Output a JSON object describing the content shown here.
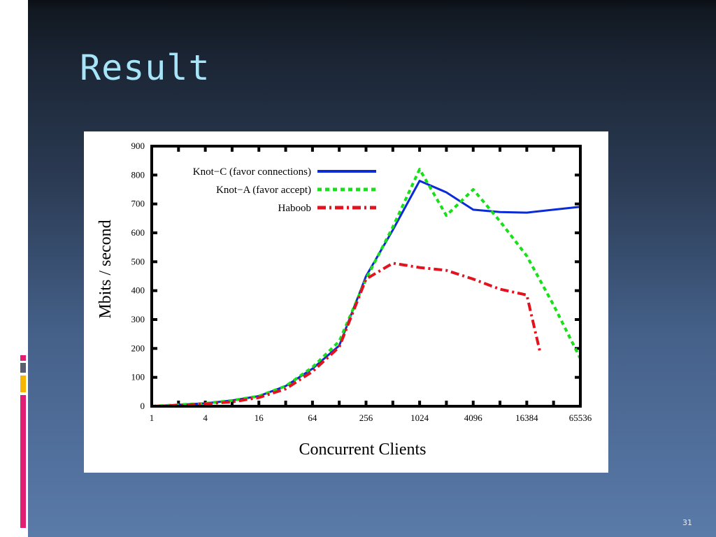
{
  "slide": {
    "title": "Result",
    "number": "31"
  },
  "colors": {
    "title": "#a7e4f7",
    "accent_pink": "#e11d74",
    "accent_gray": "#56606e",
    "accent_orange": "#f5b400",
    "series_knot_c": "#0a2bd6",
    "series_knot_a": "#18e018",
    "series_haboob": "#e3121f"
  },
  "chart_data": {
    "type": "line",
    "xlabel": "Concurrent Clients",
    "ylabel": "Mbits / second",
    "x_scale": "log2",
    "xlim": [
      1,
      65536
    ],
    "ylim": [
      0,
      900
    ],
    "x_ticks": [
      "1",
      "4",
      "16",
      "64",
      "256",
      "1024",
      "4096",
      "16384",
      "65536"
    ],
    "y_ticks": [
      "0",
      "100",
      "200",
      "300",
      "400",
      "500",
      "600",
      "700",
      "800",
      "900"
    ],
    "legend_position": "top-left",
    "series": [
      {
        "name": "Knot−C (favor connections)",
        "style": "solid",
        "x": [
          1,
          2,
          4,
          8,
          16,
          32,
          64,
          128,
          256,
          512,
          1024,
          2048,
          4096,
          8192,
          16384,
          32768,
          65536
        ],
        "y": [
          0,
          5,
          10,
          20,
          35,
          70,
          130,
          210,
          450,
          610,
          780,
          740,
          680,
          672,
          670,
          680,
          690
        ]
      },
      {
        "name": "Knot−A (favor accept)",
        "style": "dotted",
        "x": [
          1,
          2,
          4,
          8,
          16,
          32,
          64,
          128,
          256,
          512,
          1024,
          2048,
          4096,
          8192,
          16384,
          32768,
          65536
        ],
        "y": [
          0,
          5,
          10,
          20,
          35,
          70,
          135,
          225,
          440,
          620,
          820,
          660,
          750,
          640,
          520,
          350,
          165
        ]
      },
      {
        "name": "Haboob",
        "style": "dashdot",
        "x": [
          1,
          2,
          4,
          8,
          16,
          32,
          64,
          128,
          256,
          512,
          1024,
          2048,
          4096,
          8192,
          16384,
          23000
        ],
        "y": [
          0,
          3,
          8,
          15,
          30,
          60,
          120,
          205,
          440,
          495,
          480,
          470,
          440,
          405,
          385,
          190
        ]
      }
    ]
  }
}
